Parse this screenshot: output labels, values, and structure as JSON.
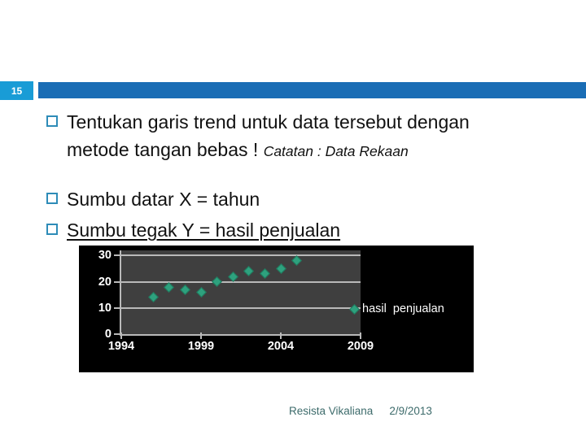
{
  "slide": {
    "number": "15",
    "footer": {
      "author": "Resista Vikaliana",
      "date": "2/9/2013"
    }
  },
  "bullets": [
    {
      "main": "Tentukan garis trend untuk data tersebut dengan metode tangan bebas ! ",
      "note": "Catatan : Data Rekaan"
    },
    {
      "main": "Sumbu datar X = tahun"
    },
    {
      "main": "Sumbu tegak Y = hasil penjualan"
    }
  ],
  "chart_data": {
    "type": "scatter",
    "title": "",
    "xlabel": "",
    "ylabel": "",
    "x": [
      1996,
      1997,
      1998,
      1999,
      2000,
      2001,
      2002,
      2003,
      2004,
      2005
    ],
    "series": [
      {
        "name": "hasil  penjualan",
        "values": [
          14,
          18,
          17,
          16,
          20,
          22,
          24,
          23,
          25,
          28
        ]
      }
    ],
    "x_ticks": [
      1994,
      1999,
      2004,
      2009
    ],
    "y_ticks": [
      0,
      10,
      20,
      30
    ],
    "xlim": [
      1994,
      2009
    ],
    "ylim": [
      0,
      32
    ],
    "grid": true,
    "legend_position": "right",
    "colors": {
      "background": "#000000",
      "plot_background": "#3F3F3F",
      "axis": "#B9B9B9",
      "marker": "#2EA17E",
      "tick_label": "#FFFFFF"
    }
  },
  "colors": {
    "header_badge": "#199CD6",
    "header_bar": "#1A6DB5",
    "bullet_outline": "#2E8CB8",
    "body_text": "#111111",
    "footer_text": "#3D6B6B"
  }
}
